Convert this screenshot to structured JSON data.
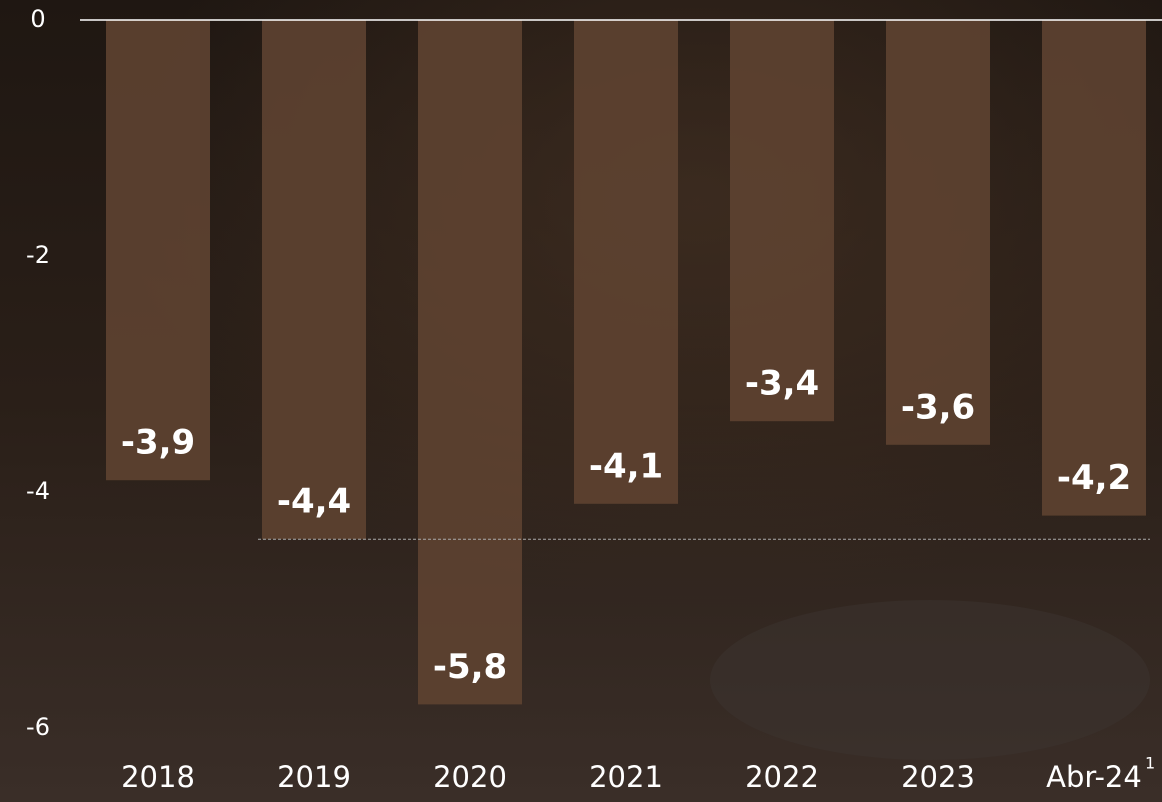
{
  "chart_data": {
    "type": "bar",
    "categories": [
      "2018",
      "2019",
      "2020",
      "2021",
      "2022",
      "2023",
      "Abr-24"
    ],
    "category_footnote": "1",
    "values": [
      -3.9,
      -4.4,
      -5.8,
      -4.1,
      -3.4,
      -3.6,
      -4.2
    ],
    "value_labels": [
      "-3,9",
      "-4,4",
      "-5,8",
      "-4,1",
      "-3,4",
      "-3,6",
      "-4,2"
    ],
    "color": "#5e4331",
    "reference_value": -4.4,
    "ylim": [
      -6,
      0
    ],
    "yticks": [
      0,
      -2,
      -4,
      -6
    ],
    "grid": false
  }
}
